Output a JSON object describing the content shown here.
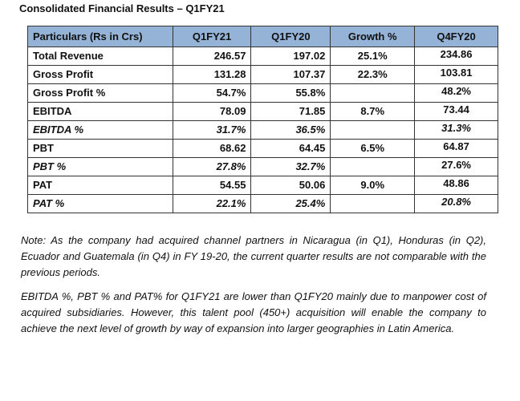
{
  "title": "Consolidated Financial Results – Q1FY21",
  "table": {
    "headers": [
      "Particulars (Rs in Crs)",
      "Q1FY21",
      "Q1FY20",
      "Growth %",
      "Q4FY20"
    ],
    "rows": [
      {
        "label": "Total Revenue",
        "q1fy21": "246.57",
        "q1fy20": "197.02",
        "growth": "25.1%",
        "q4fy20": "234.86",
        "italic": false
      },
      {
        "label": "Gross Profit",
        "q1fy21": "131.28",
        "q1fy20": "107.37",
        "growth": "22.3%",
        "q4fy20": "103.81",
        "italic": false
      },
      {
        "label": "Gross Profit  %",
        "q1fy21": "54.7%",
        "q1fy20": "55.8%",
        "growth": "",
        "q4fy20": "48.2%",
        "italic": false
      },
      {
        "label": "EBITDA",
        "q1fy21": "78.09",
        "q1fy20": "71.85",
        "growth": "8.7%",
        "q4fy20": "73.44",
        "italic": false
      },
      {
        "label": "EBITDA %",
        "q1fy21": "31.7%",
        "q1fy20": "36.5%",
        "growth": "",
        "q4fy20": "31.3%",
        "italic": true,
        "q4italic": true
      },
      {
        "label": "PBT",
        "q1fy21": "68.62",
        "q1fy20": "64.45",
        "growth": "6.5%",
        "q4fy20": "64.87",
        "italic": false
      },
      {
        "label": "PBT %",
        "q1fy21": "27.8%",
        "q1fy20": "32.7%",
        "growth": "",
        "q4fy20": "27.6%",
        "italic": true,
        "q4italic": false
      },
      {
        "label": "PAT",
        "q1fy21": "54.55",
        "q1fy20": "50.06",
        "growth": "9.0%",
        "q4fy20": "48.86",
        "italic": false
      },
      {
        "label": "PAT %",
        "q1fy21": "22.1%",
        "q1fy20": "25.4%",
        "growth": "",
        "q4fy20": "20.8%",
        "italic": true,
        "q4italic": true
      }
    ]
  },
  "notes": [
    "Note: As the company had acquired channel partners in Nicaragua (in Q1), Honduras (in Q2), Ecuador and Guatemala (in Q4) in FY 19-20, the current quarter results are not comparable with the previous periods.",
    "EBITDA %, PBT % and PAT% for Q1FY21 are lower than Q1FY20 mainly due to manpower cost of acquired subsidiaries. However, this talent pool (450+) acquisition will enable the company to achieve the next level of growth by way of expansion into larger geographies in Latin America."
  ]
}
